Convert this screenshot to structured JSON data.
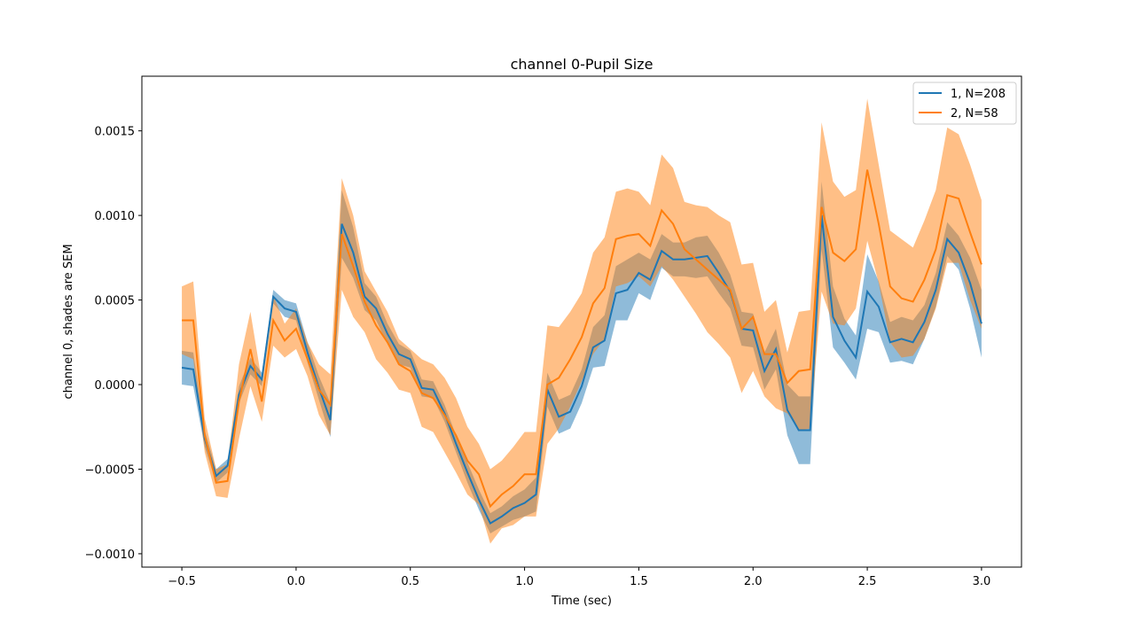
{
  "chart_data": {
    "type": "line",
    "title": "channel 0-Pupil Size",
    "x_label": "Time (sec)",
    "y_label": "channel 0, shades are SEM",
    "legend": "upper right",
    "x": [
      -0.5,
      -0.45,
      -0.4,
      -0.35,
      -0.3,
      -0.25,
      -0.2,
      -0.15,
      -0.1,
      -0.05,
      0.0,
      0.05,
      0.1,
      0.15,
      0.2,
      0.25,
      0.3,
      0.35,
      0.4,
      0.45,
      0.5,
      0.55,
      0.6,
      0.65,
      0.7,
      0.75,
      0.8,
      0.85,
      0.9,
      0.95,
      1.0,
      1.05,
      1.1,
      1.15,
      1.2,
      1.25,
      1.3,
      1.35,
      1.4,
      1.45,
      1.5,
      1.55,
      1.6,
      1.65,
      1.7,
      1.75,
      1.8,
      1.85,
      1.9,
      1.95,
      2.0,
      2.05,
      2.1,
      2.15,
      2.2,
      2.25,
      2.3,
      2.35,
      2.4,
      2.45,
      2.5,
      2.55,
      2.6,
      2.65,
      2.7,
      2.75,
      2.8,
      2.85,
      2.9,
      2.95,
      3.0
    ],
    "series": [
      {
        "name": "1, N=208",
        "color": "#1f77b4",
        "values": [
          0.0001,
          9e-05,
          -0.00032,
          -0.00054,
          -0.00048,
          -6e-05,
          0.00011,
          3e-05,
          0.00052,
          0.00045,
          0.00043,
          0.00019,
          -2e-05,
          -0.00021,
          0.00095,
          0.00078,
          0.00052,
          0.00045,
          0.0003,
          0.00018,
          0.00015,
          -2e-05,
          -3e-05,
          -0.00017,
          -0.00035,
          -0.00052,
          -0.00068,
          -0.00082,
          -0.00078,
          -0.00073,
          -0.0007,
          -0.00065,
          -3e-05,
          -0.00019,
          -0.00016,
          -1e-05,
          0.00022,
          0.00026,
          0.00054,
          0.00056,
          0.00066,
          0.00062,
          0.00079,
          0.00074,
          0.00074,
          0.00075,
          0.00076,
          0.00066,
          0.00055,
          0.00033,
          0.00032,
          8e-05,
          0.00021,
          -0.00015,
          -0.00027,
          -0.00027,
          0.001,
          0.0004,
          0.00026,
          0.00016,
          0.00055,
          0.00046,
          0.00025,
          0.00027,
          0.00025,
          0.00037,
          0.00056,
          0.00086,
          0.00078,
          0.0006,
          0.00036
        ],
        "errors": [
          0.0001,
          0.0001,
          5e-05,
          4e-05,
          4e-05,
          5e-05,
          5e-05,
          4e-05,
          4e-05,
          5e-05,
          5e-05,
          6e-05,
          7e-05,
          0.0001,
          0.0002,
          0.00015,
          8e-05,
          7e-05,
          6e-05,
          6e-05,
          5e-05,
          5e-05,
          5e-05,
          5e-05,
          5e-05,
          6e-05,
          6e-05,
          6e-05,
          6e-05,
          7e-05,
          8e-05,
          0.0001,
          0.0001,
          0.0001,
          0.0001,
          0.0001,
          0.00012,
          0.00015,
          0.00016,
          0.00018,
          0.00012,
          0.00012,
          0.0001,
          0.0001,
          0.0001,
          0.00012,
          0.00012,
          0.00012,
          0.0001,
          0.0001,
          0.0001,
          0.00011,
          0.00012,
          0.00015,
          0.0002,
          0.0002,
          0.0002,
          0.00018,
          0.00013,
          0.00013,
          0.00022,
          0.00015,
          0.00012,
          0.00013,
          0.00013,
          0.0001,
          0.0001,
          0.0001,
          0.0001,
          0.00015,
          0.0002
        ]
      },
      {
        "name": "2, N=58",
        "color": "#ff7f0e",
        "values": [
          0.00038,
          0.00038,
          -0.0003,
          -0.00058,
          -0.00057,
          -0.0001,
          0.00021,
          -0.0001,
          0.00038,
          0.00026,
          0.00033,
          0.00015,
          -3e-05,
          -0.00012,
          0.00089,
          0.0007,
          0.00049,
          0.00035,
          0.00025,
          0.00012,
          8e-05,
          -5e-05,
          -8e-05,
          -0.00018,
          -0.0003,
          -0.00045,
          -0.00053,
          -0.00072,
          -0.00065,
          -0.0006,
          -0.00053,
          -0.00053,
          0.0,
          4e-05,
          0.00015,
          0.00028,
          0.00048,
          0.00057,
          0.00086,
          0.00088,
          0.00089,
          0.00082,
          0.00103,
          0.00095,
          0.0008,
          0.00074,
          0.00068,
          0.00062,
          0.00056,
          0.00033,
          0.0004,
          0.00018,
          0.00018,
          1e-05,
          8e-05,
          9e-05,
          0.00105,
          0.00078,
          0.00073,
          0.0008,
          0.00127,
          0.00095,
          0.00058,
          0.00051,
          0.00049,
          0.00062,
          0.0008,
          0.00112,
          0.0011,
          0.0009,
          0.00071
        ],
        "errors": [
          0.0002,
          0.00023,
          0.0001,
          8e-05,
          0.0001,
          0.00022,
          0.00022,
          0.00012,
          0.00015,
          0.0001,
          0.00012,
          0.0001,
          0.00015,
          0.00018,
          0.00033,
          0.0003,
          0.00018,
          0.0002,
          0.00018,
          0.00015,
          0.00013,
          0.0002,
          0.0002,
          0.00022,
          0.00022,
          0.0002,
          0.00018,
          0.00022,
          0.0002,
          0.00023,
          0.00025,
          0.00025,
          0.00035,
          0.0003,
          0.00028,
          0.00026,
          0.0003,
          0.0003,
          0.00028,
          0.00028,
          0.00025,
          0.00024,
          0.00033,
          0.00033,
          0.00028,
          0.00032,
          0.00037,
          0.00038,
          0.0004,
          0.00038,
          0.00032,
          0.00025,
          0.00032,
          0.00018,
          0.00035,
          0.00035,
          0.0005,
          0.00042,
          0.00038,
          0.00035,
          0.00042,
          0.00035,
          0.00033,
          0.00035,
          0.00032,
          0.00035,
          0.00035,
          0.0004,
          0.00038,
          0.0004,
          0.00038
        ]
      }
    ],
    "xlim": [
      -0.675,
      3.175
    ],
    "ylim": [
      -0.001079,
      0.001823
    ],
    "xticks": [
      {
        "value": -0.5,
        "label": "−0.5"
      },
      {
        "value": 0,
        "label": "0.0"
      },
      {
        "value": 0.5,
        "label": "0.5"
      },
      {
        "value": 1,
        "label": "1.0"
      },
      {
        "value": 1.5,
        "label": "1.5"
      },
      {
        "value": 2,
        "label": "2.0"
      },
      {
        "value": 2.5,
        "label": "2.5"
      },
      {
        "value": 3,
        "label": "3.0"
      }
    ],
    "yticks": [
      {
        "value": -0.001,
        "label": "−0.0010"
      },
      {
        "value": -0.0005,
        "label": "−0.0005"
      },
      {
        "value": 0,
        "label": "0.0000"
      },
      {
        "value": 0.0005,
        "label": "0.0005"
      },
      {
        "value": 0.001,
        "label": "0.0010"
      },
      {
        "value": 0.0015,
        "label": "0.0015"
      }
    ]
  }
}
